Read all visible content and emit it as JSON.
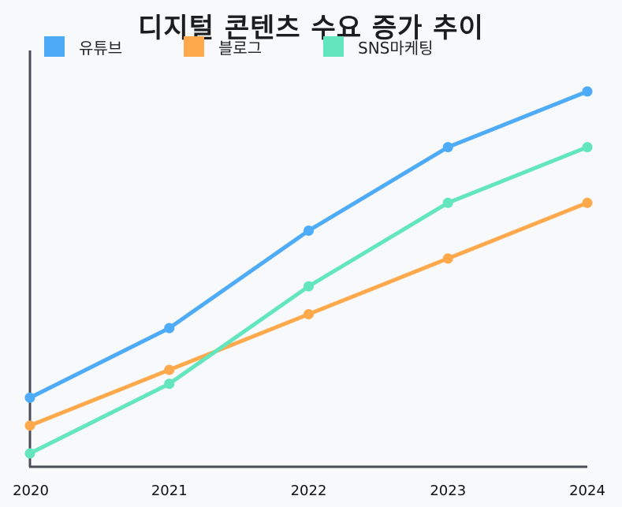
{
  "chart_data": {
    "type": "line",
    "title": "디지털 콘텐츠 수요 증가 추이",
    "categories": [
      "2020",
      "2021",
      "2022",
      "2023",
      "2024"
    ],
    "series": [
      {
        "name": "유튜브",
        "color": "#4dabf7",
        "values": [
          28,
          48,
          76,
          100,
          116
        ]
      },
      {
        "name": "블로그",
        "color": "#ffa94d",
        "values": [
          20,
          36,
          52,
          68,
          84
        ]
      },
      {
        "name": "SNS마케팅",
        "color": "#63e6be",
        "values": [
          12,
          32,
          60,
          84,
          100
        ]
      }
    ],
    "ylim": [
      12,
      116
    ],
    "grid": false,
    "legend_position": "top"
  }
}
